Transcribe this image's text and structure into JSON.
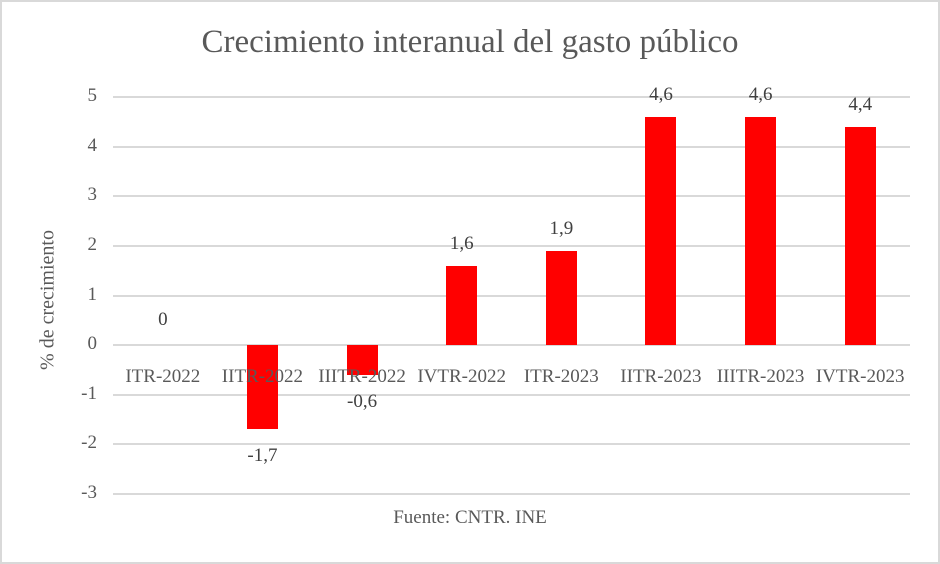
{
  "chart_data": {
    "type": "bar",
    "title": "Crecimiento interanual del gasto público",
    "xlabel": "Fuente: CNTR. INE",
    "ylabel": "% de crecimiento",
    "ylim": [
      -3,
      5
    ],
    "yticks": [
      "5",
      "4",
      "3",
      "2",
      "1",
      "0",
      "-1",
      "-2",
      "-3"
    ],
    "grid": true,
    "legend": null,
    "bar_color": "#ff0000",
    "categories": [
      "ITR-2022",
      "IITR-2022",
      "IIITR-2022",
      "IVTR-2022",
      "ITR-2023",
      "IITR-2023",
      "IIITR-2023",
      "IVTR-2023"
    ],
    "values": [
      0,
      -1.7,
      -0.6,
      1.6,
      1.9,
      4.6,
      4.6,
      4.4
    ],
    "value_labels": [
      "0",
      "-1,7",
      "-0,6",
      "1,6",
      "1,9",
      "4,6",
      "4,6",
      "4,4"
    ]
  }
}
